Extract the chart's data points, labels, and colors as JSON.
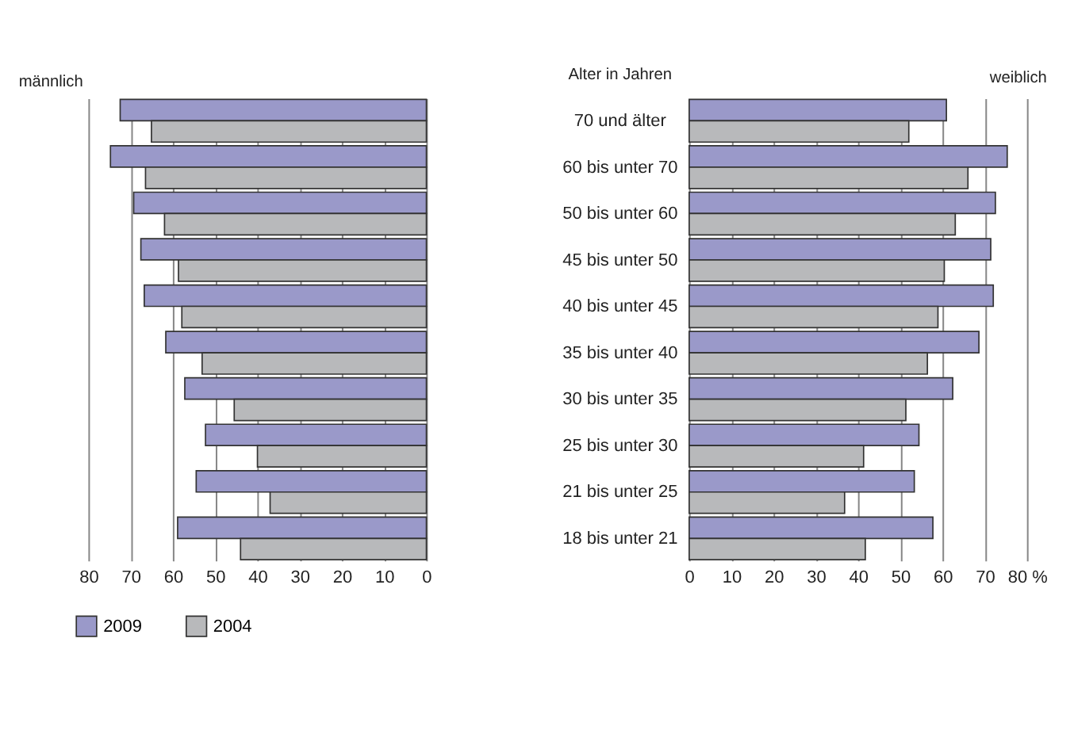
{
  "chart_data": [
    {
      "type": "bar",
      "orientation": "horizontal",
      "title": "männlich",
      "categories": [
        null,
        null,
        null,
        null,
        null,
        null,
        null,
        null,
        null,
        null
      ],
      "series": [
        {
          "name": "2009",
          "color": "#9a99c9",
          "values": [
            72.5,
            74.8,
            69.3,
            67.6,
            66.8,
            61.7,
            57.2,
            52.3,
            54.5,
            58.9
          ]
        },
        {
          "name": "2004",
          "color": "#b8b9bb",
          "values": [
            65.1,
            66.5,
            62.0,
            58.7,
            57.9,
            53.1,
            45.5,
            40.0,
            37.0,
            44.0
          ]
        }
      ],
      "xlim": [
        80,
        0
      ],
      "xticks": [
        80,
        70,
        60,
        50,
        40,
        30,
        20,
        10,
        0
      ],
      "grid": "x",
      "legend": "bottom"
    },
    {
      "type": "bar",
      "orientation": "horizontal",
      "title": "weiblich",
      "ylabel": "Alter in Jahren",
      "categories": [
        "70 und älter",
        "60 bis unter 70",
        "50 bis unter 60",
        "45 bis unter 50",
        "40 bis unter 45",
        "35 bis unter 40",
        "30 bis unter 35",
        "25 bis unter 30",
        "21 bis unter 25",
        "18 bis unter 21"
      ],
      "series": [
        {
          "name": "2009",
          "color": "#9a99c9",
          "values": [
            60.9,
            75.3,
            72.5,
            71.4,
            72.0,
            68.6,
            62.4,
            54.4,
            53.3,
            57.7
          ]
        },
        {
          "name": "2004",
          "color": "#b8b9bb",
          "values": [
            52.0,
            66.0,
            63.0,
            60.4,
            58.9,
            56.4,
            51.3,
            41.3,
            36.8,
            41.7
          ]
        }
      ],
      "xlim": [
        0,
        80
      ],
      "xticks": [
        0,
        10,
        20,
        30,
        40,
        50,
        60,
        70,
        {
          "value": 80,
          "label": "80 %"
        }
      ],
      "grid": "x"
    }
  ]
}
